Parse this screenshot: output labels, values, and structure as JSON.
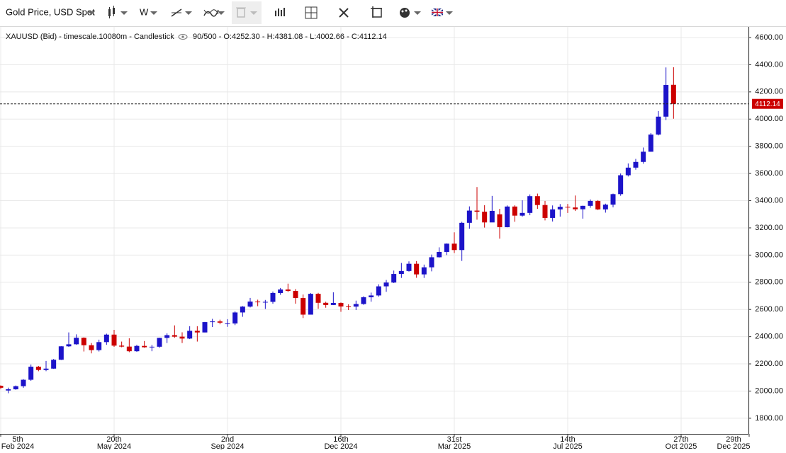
{
  "toolbar": {
    "instrument": "Gold Price, USD Spot",
    "interval": "W"
  },
  "chart_data": {
    "type": "candlestick",
    "title": "XAUUSD (Bid) - timescale.10080m - Candlestick",
    "subtitle": "90/500 - O:4252.30 - H:4381.08 - L:4002.66 - C:4112.14",
    "up_color": "#1c13c9",
    "down_color": "#cc0000",
    "grid": true,
    "xlim": [
      0,
      99
    ],
    "xticks": [
      {
        "value": 0,
        "label": "5th",
        "sublabel": "Feb 2024"
      },
      {
        "value": 15,
        "label": "20th",
        "sublabel": "May 2024"
      },
      {
        "value": 30,
        "label": "2nd",
        "sublabel": "Sep 2024"
      },
      {
        "value": 45,
        "label": "16th",
        "sublabel": "Dec 2024"
      },
      {
        "value": 60,
        "label": "31st",
        "sublabel": "Mar 2025"
      },
      {
        "value": 75,
        "label": "14th",
        "sublabel": "Jul 2025"
      },
      {
        "value": 90,
        "label": "27th",
        "sublabel": "Oct 2025"
      },
      {
        "value": 99,
        "label": "29th",
        "sublabel": "Dec 2025"
      }
    ],
    "ylim": [
      1685,
      4678
    ],
    "yticks": [
      {
        "value": 1800,
        "label": "1800.00"
      },
      {
        "value": 2000,
        "label": "2000.00"
      },
      {
        "value": 2200,
        "label": "2200.00"
      },
      {
        "value": 2400,
        "label": "2400.00"
      },
      {
        "value": 2600,
        "label": "2600.00"
      },
      {
        "value": 2800,
        "label": "2800.00"
      },
      {
        "value": 3000,
        "label": "3000.00"
      },
      {
        "value": 3200,
        "label": "3200.00"
      },
      {
        "value": 3400,
        "label": "3400.00"
      },
      {
        "value": 3600,
        "label": "3600.00"
      },
      {
        "value": 3800,
        "label": "3800.00"
      },
      {
        "value": 4000,
        "label": "4000.00"
      },
      {
        "value": 4200,
        "label": "4200.00"
      },
      {
        "value": 4400,
        "label": "4400.00"
      },
      {
        "value": 4600,
        "label": "4600.00"
      }
    ],
    "last_price": {
      "value": 4112.14,
      "label": "4112.14"
    },
    "ohlc": [
      [
        2039,
        2042,
        2014,
        2024
      ],
      [
        2004,
        2025,
        1984,
        2013
      ],
      [
        2013,
        2041,
        2009,
        2036
      ],
      [
        2036,
        2088,
        2024,
        2083
      ],
      [
        2083,
        2195,
        2075,
        2179
      ],
      [
        2179,
        2185,
        2146,
        2155
      ],
      [
        2155,
        2222,
        2146,
        2165
      ],
      [
        2165,
        2236,
        2163,
        2230
      ],
      [
        2230,
        2330,
        2228,
        2329
      ],
      [
        2329,
        2431,
        2325,
        2344
      ],
      [
        2344,
        2417,
        2340,
        2392
      ],
      [
        2392,
        2395,
        2291,
        2337
      ],
      [
        2337,
        2353,
        2277,
        2301
      ],
      [
        2301,
        2378,
        2291,
        2360
      ],
      [
        2360,
        2422,
        2340,
        2415
      ],
      [
        2415,
        2450,
        2325,
        2334
      ],
      [
        2334,
        2364,
        2322,
        2327
      ],
      [
        2327,
        2388,
        2286,
        2293
      ],
      [
        2293,
        2340,
        2288,
        2332
      ],
      [
        2332,
        2368,
        2318,
        2322
      ],
      [
        2322,
        2339,
        2293,
        2326
      ],
      [
        2326,
        2392,
        2318,
        2391
      ],
      [
        2391,
        2424,
        2353,
        2411
      ],
      [
        2411,
        2483,
        2392,
        2400
      ],
      [
        2400,
        2432,
        2353,
        2386
      ],
      [
        2386,
        2477,
        2382,
        2443
      ],
      [
        2443,
        2477,
        2364,
        2431
      ],
      [
        2431,
        2509,
        2431,
        2507
      ],
      [
        2507,
        2531,
        2471,
        2512
      ],
      [
        2512,
        2525,
        2491,
        2503
      ],
      [
        2494,
        2529,
        2472,
        2497
      ],
      [
        2497,
        2586,
        2485,
        2578
      ],
      [
        2578,
        2625,
        2546,
        2621
      ],
      [
        2621,
        2685,
        2615,
        2658
      ],
      [
        2658,
        2672,
        2624,
        2653
      ],
      [
        2653,
        2670,
        2604,
        2656
      ],
      [
        2656,
        2732,
        2642,
        2721
      ],
      [
        2721,
        2758,
        2708,
        2747
      ],
      [
        2747,
        2790,
        2729,
        2736
      ],
      [
        2736,
        2750,
        2643,
        2684
      ],
      [
        2684,
        2710,
        2537,
        2562
      ],
      [
        2562,
        2721,
        2563,
        2715
      ],
      [
        2715,
        2722,
        2605,
        2649
      ],
      [
        2649,
        2657,
        2613,
        2633
      ],
      [
        2633,
        2726,
        2632,
        2648
      ],
      [
        2648,
        2652,
        2583,
        2622
      ],
      [
        2622,
        2638,
        2596,
        2621
      ],
      [
        2621,
        2665,
        2596,
        2640
      ],
      [
        2640,
        2697,
        2634,
        2690
      ],
      [
        2690,
        2724,
        2657,
        2703
      ],
      [
        2703,
        2785,
        2694,
        2770
      ],
      [
        2770,
        2817,
        2730,
        2798
      ],
      [
        2798,
        2886,
        2794,
        2861
      ],
      [
        2861,
        2942,
        2832,
        2883
      ],
      [
        2883,
        2954,
        2878,
        2936
      ],
      [
        2936,
        2956,
        2833,
        2858
      ],
      [
        2858,
        2930,
        2832,
        2910
      ],
      [
        2910,
        3004,
        2880,
        2984
      ],
      [
        2984,
        3057,
        2982,
        3023
      ],
      [
        3023,
        3086,
        3000,
        3084
      ],
      [
        3084,
        3167,
        3015,
        3037
      ],
      [
        3037,
        3245,
        2957,
        3237
      ],
      [
        3237,
        3358,
        3194,
        3327
      ],
      [
        3327,
        3500,
        3260,
        3319
      ],
      [
        3319,
        3367,
        3202,
        3240
      ],
      [
        3240,
        3435,
        3245,
        3325
      ],
      [
        3300,
        3340,
        3121,
        3205
      ],
      [
        3205,
        3365,
        3204,
        3357
      ],
      [
        3357,
        3366,
        3245,
        3290
      ],
      [
        3290,
        3403,
        3283,
        3310
      ],
      [
        3310,
        3446,
        3293,
        3433
      ],
      [
        3433,
        3452,
        3340,
        3368
      ],
      [
        3368,
        3398,
        3255,
        3273
      ],
      [
        3273,
        3365,
        3247,
        3336
      ],
      [
        3336,
        3375,
        3283,
        3355
      ],
      [
        3355,
        3376,
        3310,
        3350
      ],
      [
        3350,
        3438,
        3324,
        3337
      ],
      [
        3337,
        3363,
        3268,
        3362
      ],
      [
        3362,
        3409,
        3348,
        3398
      ],
      [
        3398,
        3404,
        3331,
        3336
      ],
      [
        3336,
        3378,
        3312,
        3371
      ],
      [
        3371,
        3452,
        3351,
        3448
      ],
      [
        3448,
        3600,
        3436,
        3587
      ],
      [
        3587,
        3674,
        3578,
        3643
      ],
      [
        3643,
        3707,
        3628,
        3685
      ],
      [
        3685,
        3791,
        3672,
        3760
      ],
      [
        3760,
        3897,
        3760,
        3886
      ],
      [
        3886,
        4059,
        3880,
        4018
      ],
      [
        4018,
        4380,
        3993,
        4251
      ],
      [
        4252.3,
        4381.08,
        4002.66,
        4112.14
      ]
    ]
  }
}
